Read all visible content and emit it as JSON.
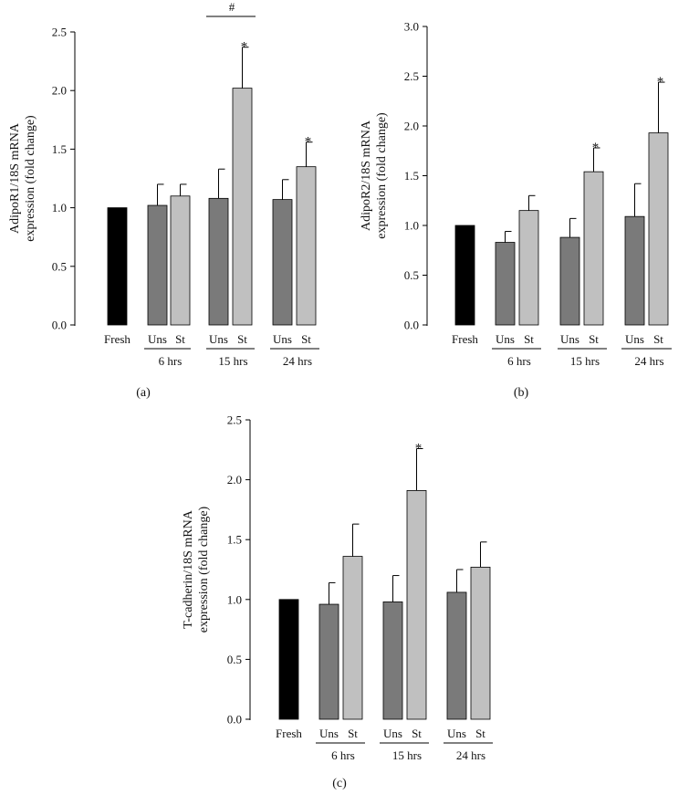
{
  "colors": {
    "Fresh": "#000000",
    "Uns": "#7a7a7a",
    "St": "#c0c0c0"
  },
  "chart_data": [
    {
      "type": "bar",
      "panel_label": "(a)",
      "ylabel_line1": "AdipoR1/18S mRNA",
      "ylabel_line2": "expression (fold change)",
      "ylim": [
        0,
        2.5
      ],
      "yticks": [
        "0.0",
        "0.5",
        "1.0",
        "1.5",
        "2.0",
        "2.5"
      ],
      "categories": [
        "Fresh",
        "Uns",
        "St",
        "Uns",
        "St",
        "Uns",
        "St"
      ],
      "groups": [
        "6 hrs",
        "15 hrs",
        "24 hrs"
      ],
      "values": [
        1.0,
        1.02,
        1.1,
        1.08,
        2.02,
        1.07,
        1.35
      ],
      "errors": [
        0,
        0.18,
        0.1,
        0.25,
        0.35,
        0.17,
        0.21
      ],
      "significant": [
        false,
        false,
        false,
        false,
        true,
        false,
        true
      ],
      "star": "*",
      "hash_label": "#"
    },
    {
      "type": "bar",
      "panel_label": "(b)",
      "ylabel_line1": "AdipoR2/18S mRNA",
      "ylabel_line2": "expression (fold change)",
      "ylim": [
        0,
        3.0
      ],
      "yticks": [
        "0.0",
        "0.5",
        "1.0",
        "1.5",
        "2.0",
        "2.5",
        "3.0"
      ],
      "categories": [
        "Fresh",
        "Uns",
        "St",
        "Uns",
        "St",
        "Uns",
        "St"
      ],
      "groups": [
        "6 hrs",
        "15 hrs",
        "24 hrs"
      ],
      "values": [
        1.0,
        0.83,
        1.15,
        0.88,
        1.54,
        1.09,
        1.93
      ],
      "errors": [
        0,
        0.11,
        0.15,
        0.19,
        0.24,
        0.33,
        0.51
      ],
      "significant": [
        false,
        false,
        false,
        false,
        true,
        false,
        true
      ],
      "star": "*"
    },
    {
      "type": "bar",
      "panel_label": "(c)",
      "ylabel_line1": "T-cadherin/18S mRNA",
      "ylabel_line2": "expression (fold change)",
      "ylim": [
        0,
        2.5
      ],
      "yticks": [
        "0.0",
        "0.5",
        "1.0",
        "1.5",
        "2.0",
        "2.5"
      ],
      "categories": [
        "Fresh",
        "Uns",
        "St",
        "Uns",
        "St",
        "Uns",
        "St"
      ],
      "groups": [
        "6 hrs",
        "15 hrs",
        "24 hrs"
      ],
      "values": [
        1.0,
        0.96,
        1.36,
        0.98,
        1.91,
        1.06,
        1.27
      ],
      "errors": [
        0,
        0.18,
        0.27,
        0.22,
        0.35,
        0.19,
        0.21
      ],
      "significant": [
        false,
        false,
        false,
        false,
        true,
        false,
        false
      ],
      "star": "*"
    }
  ]
}
